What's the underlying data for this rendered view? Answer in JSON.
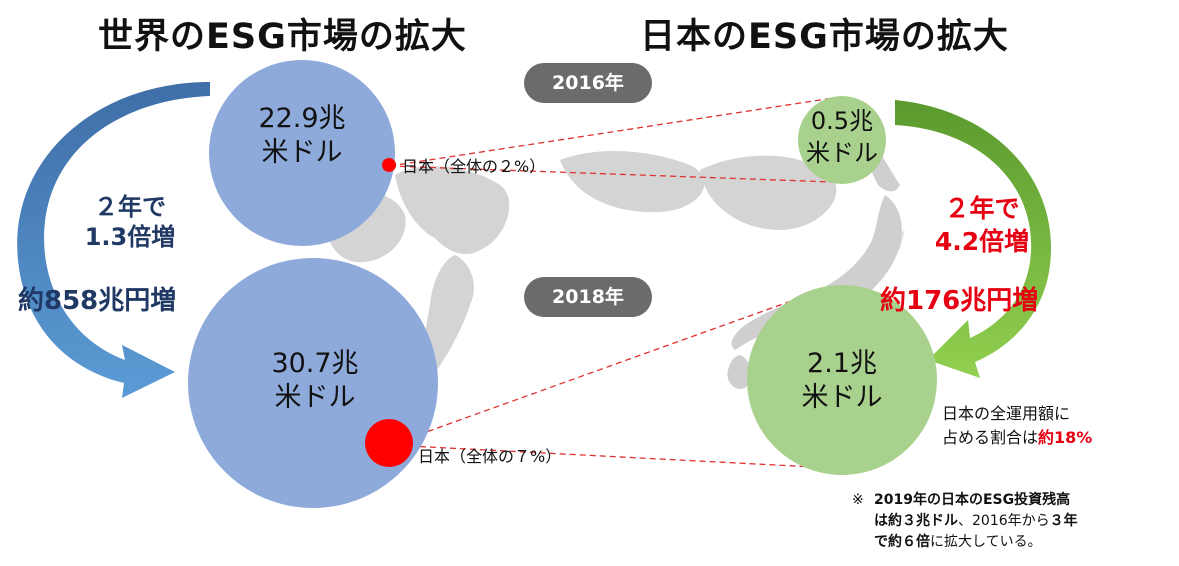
{
  "titles": {
    "world": "世界のESG市場の拡大",
    "japan": "日本のESG市場の拡大"
  },
  "years": {
    "y2016": "2016年",
    "y2018": "2018年"
  },
  "world": {
    "value_2016_line1": "22.9兆",
    "value_2016_line2": "米ドル",
    "value_2018_line1": "30.7兆",
    "value_2018_line2": "米ドル",
    "japan_share_2016": "日本（全体の２%）",
    "japan_share_2018": "日本（全体の７%）",
    "growth_line1": "２年で",
    "growth_line2": "1.3倍増",
    "growth_amount": "約858兆円増"
  },
  "japan": {
    "value_2016_line1": "0.5兆",
    "value_2016_line2": "米ドル",
    "value_2018_line1": "2.1兆",
    "value_2018_line2": "米ドル",
    "growth_line1": "２年で",
    "growth_line2": "4.2倍増",
    "growth_amount": "約176兆円増",
    "share_line1": "日本の全運用額に",
    "share_line2_prefix": "占める割合は",
    "share_line2_value": "約18%"
  },
  "note": {
    "mark": "※",
    "l1": "2019年の日本のESG投資残高",
    "l2_a": "は約３兆ドル",
    "l2_b": "、2016年から",
    "l2_c": "３年",
    "l3_a": "で約６倍",
    "l3_b": "に拡大している。"
  },
  "colors": {
    "world_circle": "#8eaadb",
    "japan_circle": "#a9d18e",
    "world_arrow": "#4a7fc0",
    "japan_arrow": "#7cc142",
    "japan_dot": "#ff0000",
    "pill": "#6b6b6b",
    "map": "#d4d4d4",
    "guide_line": "#e03030"
  },
  "chart_data": {
    "type": "bubble-comparison",
    "unit": "兆米ドル",
    "world": [
      {
        "year": "2016年",
        "value": 22.9,
        "japan_share_percent": 2
      },
      {
        "year": "2018年",
        "value": 30.7,
        "japan_share_percent": 7
      }
    ],
    "japan": [
      {
        "year": "2016年",
        "value": 0.5
      },
      {
        "year": "2018年",
        "value": 2.1
      }
    ]
  }
}
